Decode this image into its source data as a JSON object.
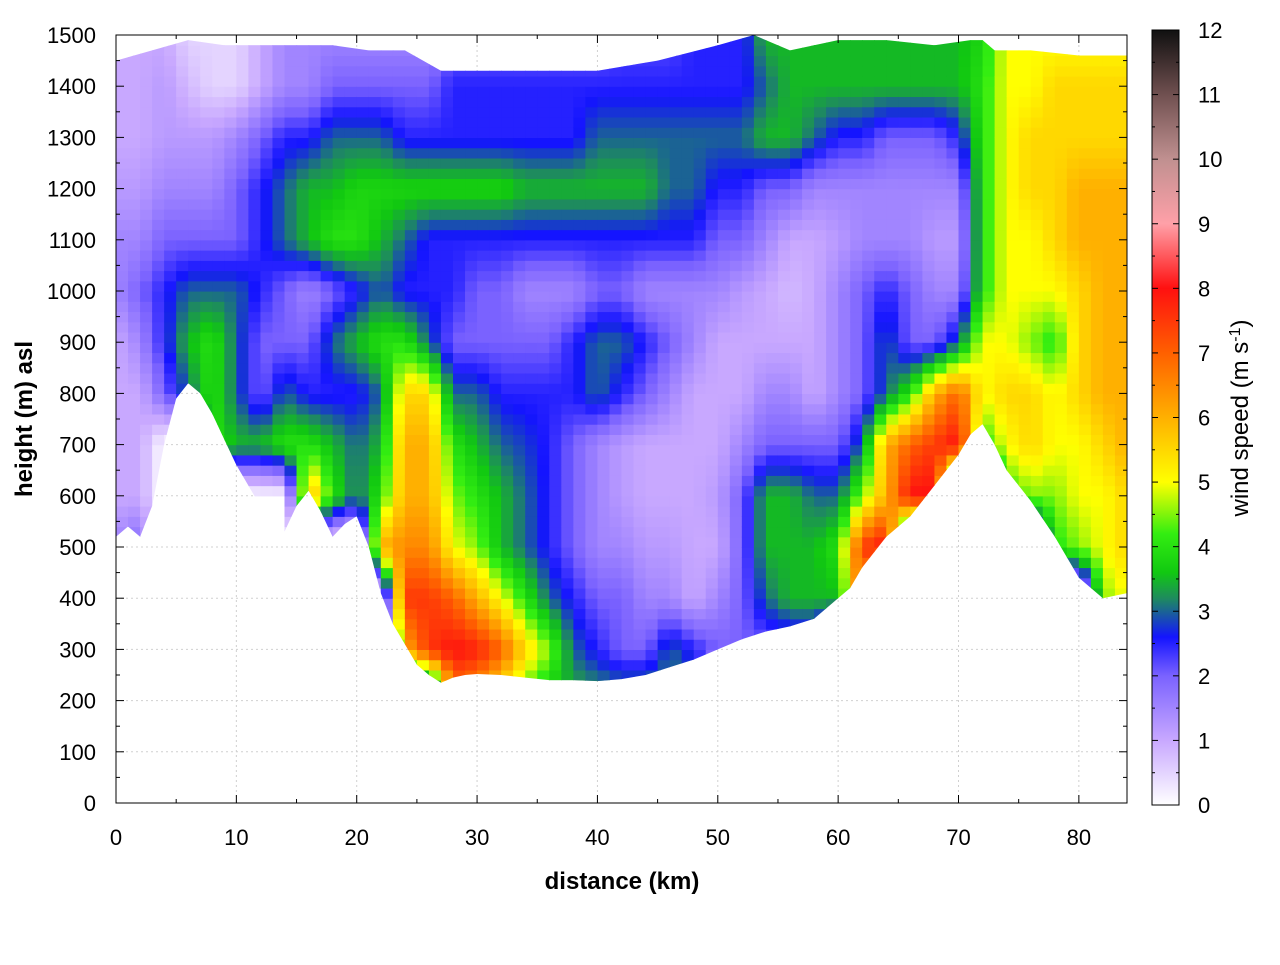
{
  "chart_data": {
    "type": "heatmap",
    "xlabel": "distance (km)",
    "ylabel": "height (m) asl",
    "colorbar": {
      "label_main": "wind speed (m s",
      "label_sup": "-1",
      "label_close": ")",
      "range": [
        0,
        12
      ],
      "ticks": [
        "0",
        "1",
        "2",
        "3",
        "4",
        "5",
        "6",
        "7",
        "8",
        "9",
        "10",
        "11",
        "12"
      ],
      "colors": [
        {
          "v": 0,
          "c": "#ffffff"
        },
        {
          "v": 1,
          "c": "#c8a8ff"
        },
        {
          "v": 2,
          "c": "#7a62ff"
        },
        {
          "v": 2.6,
          "c": "#1414ff"
        },
        {
          "v": 3.2,
          "c": "#1e8b5e"
        },
        {
          "v": 3.6,
          "c": "#11c811"
        },
        {
          "v": 4.2,
          "c": "#33ee11"
        },
        {
          "v": 5,
          "c": "#ffff00"
        },
        {
          "v": 6,
          "c": "#ffb000"
        },
        {
          "v": 7,
          "c": "#ff6000"
        },
        {
          "v": 8,
          "c": "#ff1010"
        },
        {
          "v": 9,
          "c": "#ffa0a8"
        },
        {
          "v": 10,
          "c": "#c09090"
        },
        {
          "v": 11,
          "c": "#705050"
        },
        {
          "v": 12,
          "c": "#101010"
        }
      ]
    },
    "xlim": [
      0,
      84
    ],
    "ylim": [
      0,
      1500
    ],
    "xticks": [
      "0",
      "10",
      "20",
      "30",
      "40",
      "50",
      "60",
      "70",
      "80"
    ],
    "yticks": [
      "0",
      "100",
      "200",
      "300",
      "400",
      "500",
      "600",
      "700",
      "800",
      "900",
      "1000",
      "1100",
      "1200",
      "1300",
      "1400",
      "1500"
    ],
    "grid": true,
    "terrain": {
      "x": [
        0,
        1,
        2,
        3,
        4,
        5,
        6,
        7,
        8,
        9,
        10,
        11,
        12,
        13,
        14,
        15,
        16,
        17,
        18,
        19,
        20,
        21,
        22,
        23,
        24,
        25,
        26,
        27,
        28,
        29,
        30,
        32,
        34,
        36,
        38,
        40,
        42,
        44,
        46,
        48,
        50,
        52,
        54,
        56,
        58,
        60,
        61,
        62,
        64,
        66,
        68,
        70,
        71,
        72,
        73,
        74,
        76,
        78,
        80,
        82,
        84
      ],
      "y": [
        520,
        540,
        520,
        580,
        700,
        790,
        820,
        800,
        760,
        710,
        660,
        620,
        580,
        540,
        530,
        580,
        610,
        570,
        520,
        545,
        560,
        500,
        410,
        350,
        310,
        270,
        250,
        235,
        245,
        250,
        252,
        250,
        245,
        240,
        240,
        238,
        242,
        250,
        265,
        280,
        300,
        320,
        335,
        345,
        360,
        400,
        420,
        460,
        520,
        560,
        620,
        680,
        720,
        740,
        700,
        650,
        590,
        520,
        440,
        400,
        410
      ]
    },
    "top": {
      "x": [
        0,
        3,
        6,
        9,
        12,
        15,
        18,
        21,
        24,
        27,
        30,
        35,
        40,
        45,
        50,
        53,
        56,
        60,
        64,
        68,
        71,
        72,
        73,
        76,
        80,
        84
      ],
      "y": [
        1450,
        1470,
        1490,
        1480,
        1480,
        1480,
        1480,
        1470,
        1470,
        1430,
        1430,
        1430,
        1430,
        1450,
        1480,
        1500,
        1470,
        1490,
        1490,
        1480,
        1490,
        1490,
        1470,
        1470,
        1460,
        1460
      ]
    },
    "speed_field": {
      "x": [
        0,
        2,
        4,
        6,
        8,
        10,
        12,
        14,
        16,
        18,
        20,
        22,
        24,
        26,
        28,
        30,
        32,
        34,
        36,
        38,
        40,
        42,
        44,
        46,
        48,
        50,
        52,
        54,
        56,
        58,
        60,
        62,
        64,
        66,
        68,
        70,
        72,
        74,
        76,
        78,
        80,
        82,
        84
      ],
      "y": [
        200,
        300,
        400,
        500,
        600,
        700,
        800,
        900,
        1000,
        1100,
        1200,
        1300,
        1400,
        1500
      ],
      "z": [
        [
          0,
          0,
          0,
          0,
          0,
          0,
          0,
          0,
          0,
          0,
          0,
          0,
          0,
          0,
          6.5,
          6,
          5,
          4,
          3.5,
          3.5,
          3.5,
          3.5,
          3.5,
          3.2,
          3,
          0,
          0,
          0,
          0,
          0,
          0,
          0,
          0,
          0,
          0,
          0,
          0,
          0,
          0,
          0,
          0,
          0,
          0
        ],
        [
          0,
          0,
          0,
          0,
          0,
          0,
          0,
          0,
          0,
          0,
          0,
          0,
          6,
          7.5,
          8,
          7.8,
          7,
          5.5,
          4.5,
          3,
          2.5,
          2,
          2,
          3,
          2.5,
          2,
          2,
          2,
          2,
          2,
          0,
          0,
          0,
          0,
          0,
          0,
          0,
          0,
          0,
          0,
          0,
          0,
          0
        ],
        [
          0,
          0,
          0,
          0,
          0,
          0,
          0,
          0,
          0,
          0,
          0,
          0,
          7.5,
          7.5,
          7,
          6,
          5,
          4,
          3,
          2.5,
          2,
          2,
          1.5,
          1.5,
          1,
          1.5,
          2,
          3,
          3.5,
          3.5,
          3.5,
          7,
          0,
          0,
          0,
          0,
          0,
          0,
          0,
          0,
          0,
          4.5,
          5
        ],
        [
          1.5,
          2,
          0,
          0,
          0,
          0,
          0,
          0,
          0,
          0,
          0,
          6,
          6.5,
          6.5,
          5,
          4.5,
          3.5,
          3,
          2.5,
          2,
          1.5,
          1.5,
          1.2,
          1.2,
          1,
          1,
          2,
          3.5,
          3.5,
          3.5,
          4,
          7.5,
          8,
          0,
          0,
          0,
          0,
          0,
          0,
          4,
          4.5,
          5,
          5.5
        ],
        [
          1,
          1,
          0,
          0,
          0,
          0,
          0,
          0,
          6,
          4,
          3,
          4,
          6,
          6,
          4.5,
          4,
          3.5,
          3,
          2.5,
          2,
          1.5,
          1.2,
          1,
          1,
          1,
          1.2,
          2,
          3.5,
          3.5,
          3,
          3,
          4.5,
          6,
          8,
          8,
          0,
          0,
          4,
          4.5,
          4.5,
          5,
          5,
          5.5
        ],
        [
          1,
          1,
          0,
          0,
          4,
          3.5,
          3.5,
          4,
          4,
          3.5,
          3,
          3.5,
          6,
          6,
          4,
          3.5,
          3,
          2.8,
          2.5,
          2,
          1.5,
          1.2,
          1,
          1,
          1,
          1,
          1.5,
          2,
          2,
          2,
          2,
          3,
          6,
          7,
          7.5,
          8,
          4,
          5,
          5.5,
          5,
          5,
          5.5,
          6
        ],
        [
          1,
          1,
          2,
          3,
          4,
          3,
          2,
          3,
          2.5,
          2.5,
          2.5,
          3,
          5.5,
          5.5,
          3,
          3,
          2.5,
          2.5,
          2.5,
          2.5,
          3,
          2.5,
          2,
          1.5,
          1,
          1,
          1,
          1.5,
          1.5,
          1,
          1.5,
          2,
          3,
          4,
          6,
          7,
          5,
          5.5,
          5.5,
          5,
          5.5,
          6,
          6
        ],
        [
          1,
          1.5,
          2.5,
          3.5,
          4,
          3,
          2,
          2,
          2,
          3,
          3.5,
          4,
          4,
          3,
          2,
          2,
          2,
          2,
          2,
          2.5,
          3,
          3,
          2.5,
          2,
          1.5,
          1,
          1,
          1,
          1,
          1,
          1.5,
          2,
          3,
          2,
          2,
          3,
          5,
          5,
          4.5,
          4,
          5.5,
          6,
          6
        ],
        [
          1.5,
          2,
          2.5,
          3,
          3,
          3,
          2.5,
          2,
          1.5,
          2,
          2.5,
          3,
          2.5,
          2.5,
          2.5,
          2,
          2,
          1.5,
          1.5,
          1.5,
          2,
          2,
          1.5,
          1.5,
          1.5,
          1.5,
          1.2,
          1,
          0.8,
          1,
          1.5,
          2,
          2.5,
          2,
          1.5,
          1.5,
          4,
          5,
          5,
          5,
          5.5,
          6,
          6
        ],
        [
          1.5,
          1.5,
          2,
          2,
          2,
          2,
          2.5,
          3,
          3.5,
          4,
          4,
          3.5,
          3,
          2.5,
          2.5,
          2.5,
          2.5,
          2.5,
          2.5,
          2.5,
          2.5,
          2.5,
          2.5,
          2.5,
          2.5,
          2,
          2,
          1.5,
          1,
          1,
          1.2,
          1.5,
          1.5,
          1.5,
          1.2,
          1.2,
          4,
          5,
          5,
          5.5,
          6,
          6,
          6
        ],
        [
          1.2,
          1.2,
          1.5,
          1.5,
          1.5,
          2,
          2.5,
          3,
          3.5,
          3.5,
          3.8,
          3.8,
          3.8,
          3.8,
          3.8,
          3.8,
          3.8,
          3.5,
          3.5,
          3.5,
          3.5,
          3.5,
          3.5,
          3,
          3,
          2.5,
          2.5,
          2,
          2,
          1.5,
          1.5,
          1.5,
          1.5,
          1.5,
          1.5,
          1.5,
          4,
          5,
          5.5,
          5.5,
          6,
          6,
          6
        ],
        [
          1,
          1,
          1.2,
          1.2,
          1.2,
          1.5,
          2,
          2.5,
          2.5,
          3,
          3,
          3,
          2.5,
          2.5,
          2.5,
          2.5,
          2.5,
          2.5,
          2.5,
          2.5,
          3,
          3,
          3,
          3,
          3,
          3,
          3,
          3.5,
          3.5,
          3,
          2.5,
          2.5,
          2,
          2,
          2,
          2.5,
          4,
          5,
          5.5,
          5.5,
          5.5,
          5.5,
          5.5
        ],
        [
          1,
          1,
          1.2,
          0.8,
          0.5,
          0.5,
          1,
          1.5,
          1.5,
          2,
          2,
          2,
          2,
          2,
          2.5,
          2.5,
          2.5,
          2.5,
          2.5,
          2.5,
          2.5,
          2.5,
          2.5,
          2.5,
          2.5,
          2.5,
          2.5,
          3,
          3.5,
          3.5,
          3.5,
          3.5,
          3.5,
          3.5,
          3.5,
          3.5,
          4,
          5,
          5,
          5.5,
          5.5,
          5.5,
          5.5
        ],
        [
          1,
          1,
          1,
          0.5,
          0.5,
          0.5,
          1,
          1.5,
          1.5,
          1.5,
          1.5,
          1.5,
          1.5,
          1.5,
          2,
          2,
          2,
          2,
          2,
          2,
          2,
          2.2,
          2.2,
          2.2,
          2.5,
          2.5,
          2.5,
          3.5,
          3.5,
          3.5,
          3.5,
          3.5,
          3.5,
          3.5,
          3.5,
          3.5,
          3.8,
          5,
          5,
          5,
          5,
          5,
          5
        ]
      ]
    }
  }
}
